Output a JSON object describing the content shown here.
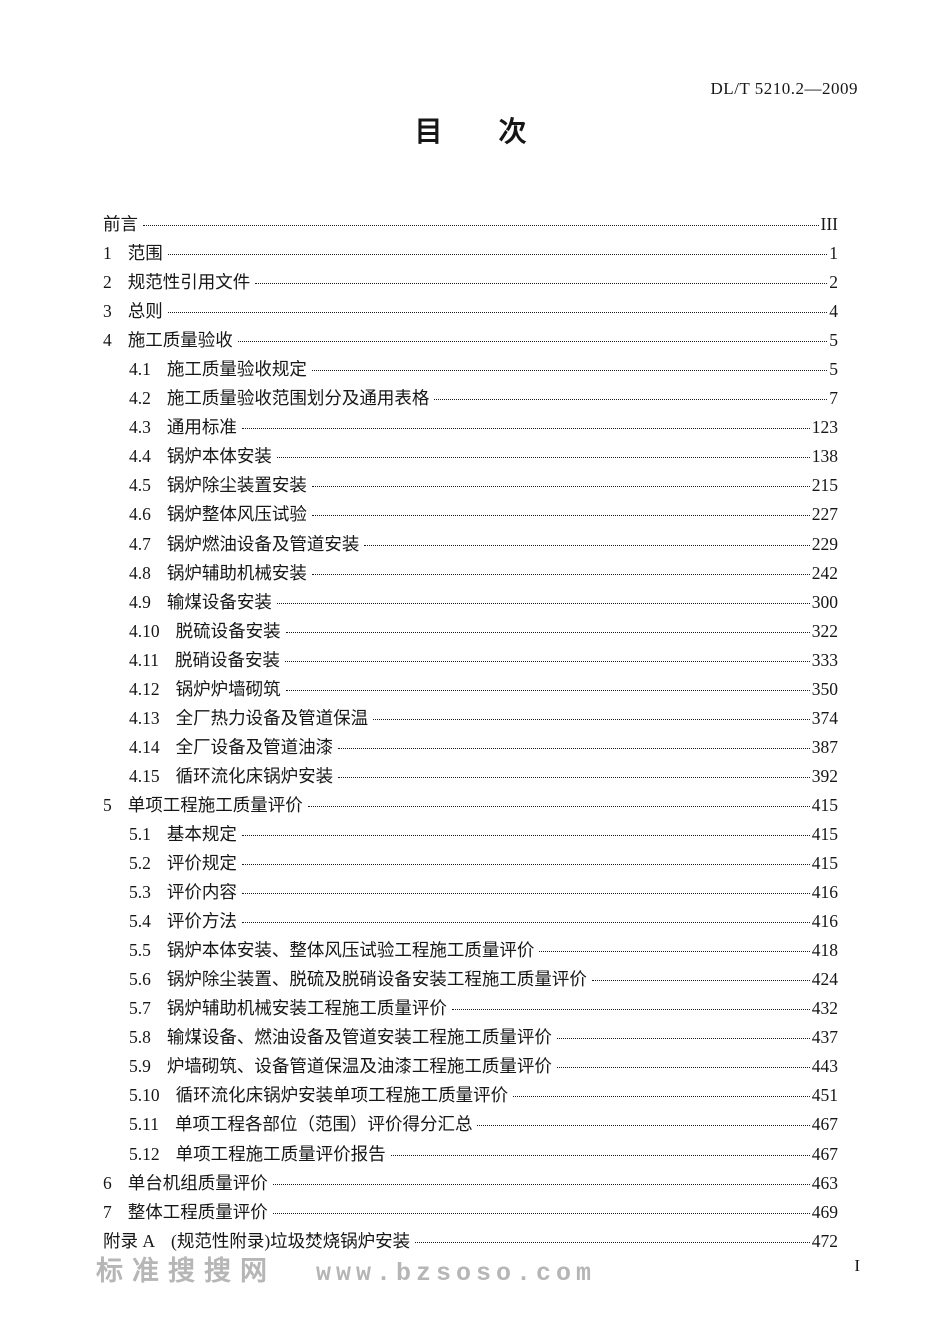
{
  "header": {
    "doc_number": "DL/T 5210.2—2009"
  },
  "title": {
    "text": "目　　次"
  },
  "toc": {
    "entries": [
      {
        "num": "",
        "label": "前言",
        "page": "III",
        "level": 0
      },
      {
        "num": "1",
        "label": "范围",
        "page": "1",
        "level": 0
      },
      {
        "num": "2",
        "label": "规范性引用文件",
        "page": "2",
        "level": 0
      },
      {
        "num": "3",
        "label": "总则",
        "page": "4",
        "level": 0
      },
      {
        "num": "4",
        "label": "施工质量验收",
        "page": "5",
        "level": 0
      },
      {
        "num": "4.1",
        "label": "施工质量验收规定",
        "page": "5",
        "level": 1
      },
      {
        "num": "4.2",
        "label": "施工质量验收范围划分及通用表格",
        "page": "7",
        "level": 1
      },
      {
        "num": "4.3",
        "label": "通用标准",
        "page": "123",
        "level": 1
      },
      {
        "num": "4.4",
        "label": "锅炉本体安装",
        "page": "138",
        "level": 1
      },
      {
        "num": "4.5",
        "label": "锅炉除尘装置安装",
        "page": "215",
        "level": 1
      },
      {
        "num": "4.6",
        "label": "锅炉整体风压试验",
        "page": "227",
        "level": 1
      },
      {
        "num": "4.7",
        "label": "锅炉燃油设备及管道安装",
        "page": "229",
        "level": 1
      },
      {
        "num": "4.8",
        "label": "锅炉辅助机械安装",
        "page": "242",
        "level": 1
      },
      {
        "num": "4.9",
        "label": "输煤设备安装",
        "page": "300",
        "level": 1
      },
      {
        "num": "4.10",
        "label": "脱硫设备安装",
        "page": "322",
        "level": 1
      },
      {
        "num": "4.11",
        "label": "脱硝设备安装",
        "page": "333",
        "level": 1
      },
      {
        "num": "4.12",
        "label": "锅炉炉墙砌筑",
        "page": "350",
        "level": 1
      },
      {
        "num": "4.13",
        "label": "全厂热力设备及管道保温",
        "page": "374",
        "level": 1
      },
      {
        "num": "4.14",
        "label": "全厂设备及管道油漆",
        "page": "387",
        "level": 1
      },
      {
        "num": "4.15",
        "label": "循环流化床锅炉安装",
        "page": "392",
        "level": 1
      },
      {
        "num": "5",
        "label": "单项工程施工质量评价",
        "page": "415",
        "level": 0
      },
      {
        "num": "5.1",
        "label": "基本规定",
        "page": "415",
        "level": 1
      },
      {
        "num": "5.2",
        "label": "评价规定",
        "page": "415",
        "level": 1
      },
      {
        "num": "5.3",
        "label": "评价内容",
        "page": "416",
        "level": 1
      },
      {
        "num": "5.4",
        "label": "评价方法",
        "page": "416",
        "level": 1
      },
      {
        "num": "5.5",
        "label": "锅炉本体安装、整体风压试验工程施工质量评价",
        "page": "418",
        "level": 1
      },
      {
        "num": "5.6",
        "label": "锅炉除尘装置、脱硫及脱硝设备安装工程施工质量评价",
        "page": "424",
        "level": 1
      },
      {
        "num": "5.7",
        "label": "锅炉辅助机械安装工程施工质量评价",
        "page": "432",
        "level": 1
      },
      {
        "num": "5.8",
        "label": "输煤设备、燃油设备及管道安装工程施工质量评价",
        "page": "437",
        "level": 1
      },
      {
        "num": "5.9",
        "label": "炉墙砌筑、设备管道保温及油漆工程施工质量评价",
        "page": "443",
        "level": 1
      },
      {
        "num": "5.10",
        "label": "循环流化床锅炉安装单项工程施工质量评价",
        "page": "451",
        "level": 1
      },
      {
        "num": "5.11",
        "label": "单项工程各部位（范围）评价得分汇总",
        "page": "467",
        "level": 1
      },
      {
        "num": "5.12",
        "label": "单项工程施工质量评价报告",
        "page": "467",
        "level": 1
      },
      {
        "num": "6",
        "label": "单台机组质量评价",
        "page": "463",
        "level": 0
      },
      {
        "num": "7",
        "label": "整体工程质量评价",
        "page": "469",
        "level": 0
      },
      {
        "num": "附录 A",
        "label": "(规范性附录)垃圾焚烧锅炉安装",
        "page": "472",
        "level": 0
      }
    ]
  },
  "watermark": {
    "site_name": "标准搜搜网",
    "site_url": "www.bzsoso.com"
  },
  "footer": {
    "page_number": "I"
  },
  "colors": {
    "text": "#161616",
    "watermark": "#b6b6b6",
    "leader_dots": "#1c1c1c"
  }
}
